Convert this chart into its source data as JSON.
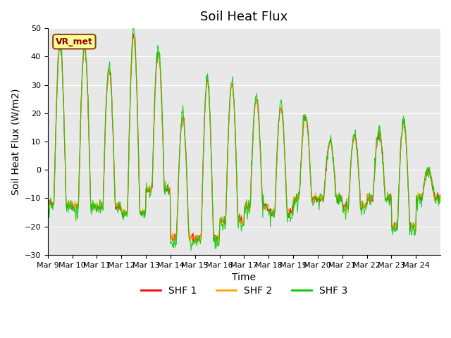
{
  "title": "Soil Heat Flux",
  "ylabel": "Soil Heat Flux (W/m2)",
  "xlabel": "Time",
  "ylim": [
    -30,
    50
  ],
  "yticks": [
    -30,
    -20,
    -10,
    0,
    10,
    20,
    30,
    40,
    50
  ],
  "xtick_labels": [
    "Mar 9",
    "Mar 10",
    "Mar 11",
    "Mar 12",
    "Mar 13",
    "Mar 14",
    "Mar 15",
    "Mar 16",
    "Mar 17",
    "Mar 18",
    "Mar 19",
    "Mar 20",
    "Mar 21",
    "Mar 22",
    "Mar 23",
    "Mar 24"
  ],
  "line_colors": [
    "#ff0000",
    "#ffa500",
    "#00cc00"
  ],
  "line_labels": [
    "SHF 1",
    "SHF 2",
    "SHF 3"
  ],
  "legend_box_label": "VR_met",
  "legend_box_facecolor": "#ffff99",
  "legend_box_edgecolor": "#8B4513",
  "bg_color": "#e8e8e8",
  "title_fontsize": 13,
  "label_fontsize": 10,
  "tick_fontsize": 8
}
